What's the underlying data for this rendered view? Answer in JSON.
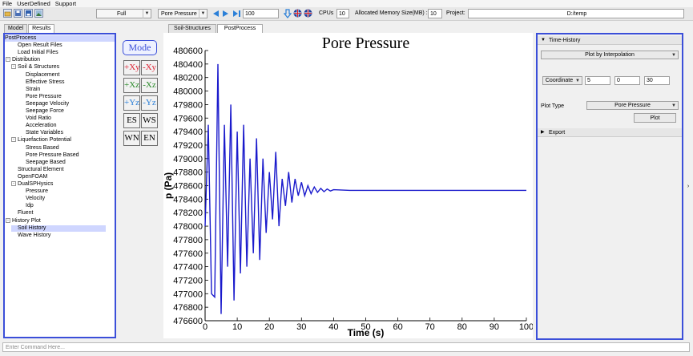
{
  "menubar": [
    "File",
    "UserDefined",
    "Support"
  ],
  "toolbar": {
    "view_mode": "Full",
    "variable": "Pore Pressure",
    "frame": "100",
    "cpus_label": "CPUs",
    "cpus_value": "10",
    "memory_label": "Allocated Memory Size(MB) :",
    "memory_value": "10",
    "project_label": "Project:",
    "project_path": "D:/temp"
  },
  "left_tabs": [
    "Model",
    "Results"
  ],
  "tree": [
    {
      "label": "PostProcess",
      "depth": 0,
      "exp": "",
      "selected": true
    },
    {
      "label": "Open Result Files",
      "depth": 1,
      "exp": ""
    },
    {
      "label": "Load Initial Files",
      "depth": 1,
      "exp": ""
    },
    {
      "label": "Distribution",
      "depth": 0,
      "exp": "-"
    },
    {
      "label": "Soil & Structures",
      "depth": 1,
      "exp": "-"
    },
    {
      "label": "Displacement",
      "depth": 2,
      "exp": ""
    },
    {
      "label": "Effective Stress",
      "depth": 2,
      "exp": ""
    },
    {
      "label": "Strain",
      "depth": 2,
      "exp": ""
    },
    {
      "label": "Pore Pressure",
      "depth": 2,
      "exp": ""
    },
    {
      "label": "Seepage Velocity",
      "depth": 2,
      "exp": ""
    },
    {
      "label": "Seepage Force",
      "depth": 2,
      "exp": ""
    },
    {
      "label": "Void Ratio",
      "depth": 2,
      "exp": ""
    },
    {
      "label": "Acceleration",
      "depth": 2,
      "exp": ""
    },
    {
      "label": "State Variables",
      "depth": 2,
      "exp": ""
    },
    {
      "label": "Liquefaction Potential",
      "depth": 1,
      "exp": "-"
    },
    {
      "label": "Stress Based",
      "depth": 2,
      "exp": ""
    },
    {
      "label": "Pore Pressure Based",
      "depth": 2,
      "exp": ""
    },
    {
      "label": "Seepage Based",
      "depth": 2,
      "exp": ""
    },
    {
      "label": "Structural Element",
      "depth": 1,
      "exp": ""
    },
    {
      "label": "OpenFOAM",
      "depth": 1,
      "exp": ""
    },
    {
      "label": "DualSPHysics",
      "depth": 1,
      "exp": "-"
    },
    {
      "label": "Pressure",
      "depth": 2,
      "exp": ""
    },
    {
      "label": "Velocity",
      "depth": 2,
      "exp": ""
    },
    {
      "label": "Idp",
      "depth": 2,
      "exp": ""
    },
    {
      "label": "Fluent",
      "depth": 1,
      "exp": ""
    },
    {
      "label": "History Plot",
      "depth": 0,
      "exp": "-"
    },
    {
      "label": "Soil History",
      "depth": 1,
      "exp": "",
      "highlight": true
    },
    {
      "label": "Wave History",
      "depth": 1,
      "exp": ""
    }
  ],
  "view_buttons": {
    "mode": "Mode",
    "views": [
      "+Xy",
      "-Xy",
      "+Xz",
      "-Xz",
      "+Yz",
      "-Yz",
      "ES",
      "WS",
      "WN",
      "EN"
    ]
  },
  "center_tabs": [
    "Soil-Structures",
    "PostProcess"
  ],
  "right_panel": {
    "section1": "Time-History",
    "plot_mode": "Plot by Interpolation",
    "coord_label": "Coordinate",
    "coord_x": "5",
    "coord_y": "0",
    "coord_z": "30",
    "plot_type_label": "Plot Type",
    "plot_type": "Pore Pressure",
    "plot_button": "Plot",
    "section2": "Export"
  },
  "command_placeholder": "Enter Command Here...",
  "colors": {
    "line": "#1a1acc",
    "accent": "#3b4fd9"
  },
  "chart_data": {
    "type": "line",
    "title": "Pore Pressure",
    "xlabel": "Time (s)",
    "ylabel": "p (Pa)",
    "xlim": [
      0,
      100
    ],
    "ylim": [
      476600,
      480600
    ],
    "x_ticks": [
      0,
      10,
      20,
      30,
      40,
      50,
      60,
      70,
      80,
      90,
      100
    ],
    "y_ticks": [
      476600,
      476800,
      477000,
      477200,
      477400,
      477600,
      477800,
      478000,
      478200,
      478400,
      478600,
      478800,
      479000,
      479200,
      479400,
      479600,
      479800,
      480000,
      480200,
      480400,
      480600
    ],
    "series": [
      {
        "points": [
          [
            0,
            478000
          ],
          [
            1,
            479500
          ],
          [
            2,
            477000
          ],
          [
            3,
            476950
          ],
          [
            4,
            480400
          ],
          [
            5,
            476700
          ],
          [
            6,
            479500
          ],
          [
            7,
            477400
          ],
          [
            8,
            479800
          ],
          [
            9,
            476900
          ],
          [
            10,
            479400
          ],
          [
            11,
            477300
          ],
          [
            12,
            479500
          ],
          [
            13,
            477400
          ],
          [
            14,
            479000
          ],
          [
            15,
            477600
          ],
          [
            16,
            479300
          ],
          [
            17,
            477500
          ],
          [
            18,
            479000
          ],
          [
            19,
            477900
          ],
          [
            20,
            478800
          ],
          [
            21,
            478100
          ],
          [
            22,
            479100
          ],
          [
            23,
            478000
          ],
          [
            24,
            478700
          ],
          [
            25,
            478300
          ],
          [
            26,
            478800
          ],
          [
            27,
            478350
          ],
          [
            28,
            478700
          ],
          [
            29,
            478450
          ],
          [
            30,
            478650
          ],
          [
            31,
            478450
          ],
          [
            32,
            478600
          ],
          [
            33,
            478480
          ],
          [
            34,
            478580
          ],
          [
            35,
            478500
          ],
          [
            36,
            478560
          ],
          [
            37,
            478510
          ],
          [
            38,
            478550
          ],
          [
            39,
            478520
          ],
          [
            40,
            478540
          ],
          [
            45,
            478530
          ],
          [
            50,
            478530
          ],
          [
            60,
            478530
          ],
          [
            70,
            478530
          ],
          [
            80,
            478530
          ],
          [
            90,
            478530
          ],
          [
            100,
            478530
          ]
        ]
      }
    ]
  }
}
